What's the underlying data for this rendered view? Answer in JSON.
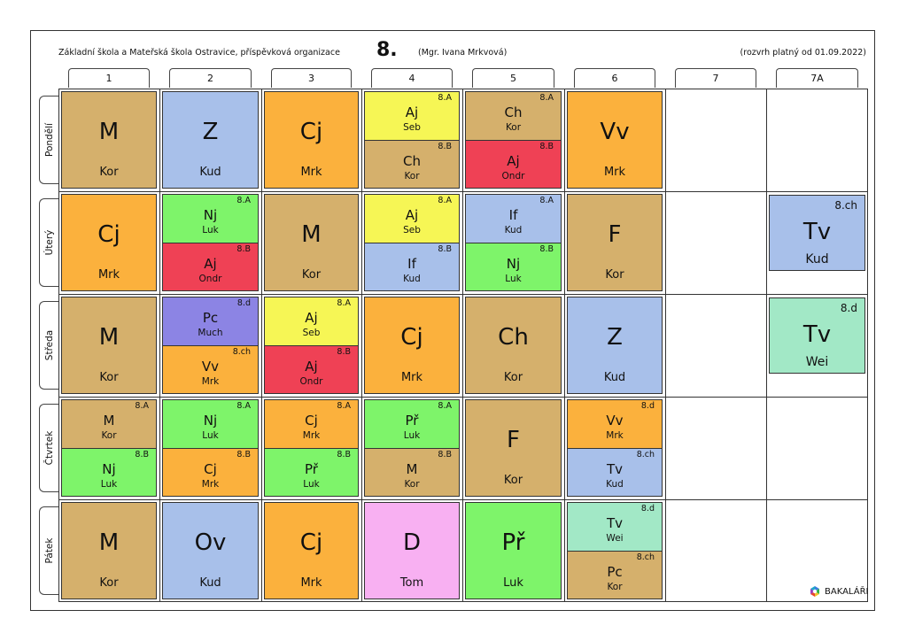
{
  "header": {
    "school": "Základní škola a Mateřská škola Ostravice, příspěvková organizace",
    "class_name": "8.",
    "teacher": "(Mgr. Ivana Mrkvová)",
    "valid_from": "(rozvrh platný od 01.09.2022)"
  },
  "periods": [
    "1",
    "2",
    "3",
    "4",
    "5",
    "6",
    "7",
    "7A"
  ],
  "days": [
    "Pondělí",
    "Úterý",
    "Středa",
    "Čtvrtek",
    "Pátek"
  ],
  "colors": {
    "tan": "#d5b06c",
    "blue": "#a8c0ea",
    "orange": "#fbb13d",
    "yellow": "#f6f655",
    "red": "#ef4155",
    "green": "#7ef46a",
    "purple": "#8c84e4",
    "pink": "#f8b0f2",
    "mint": "#a2e8c6"
  },
  "lessons": [
    {
      "day": 0,
      "period": 0,
      "type": "full",
      "subject": "M",
      "teacher": "Kor",
      "color": "tan"
    },
    {
      "day": 0,
      "period": 1,
      "type": "full",
      "subject": "Z",
      "teacher": "Kud",
      "color": "blue"
    },
    {
      "day": 0,
      "period": 2,
      "type": "full",
      "subject": "Cj",
      "teacher": "Mrk",
      "color": "orange"
    },
    {
      "day": 0,
      "period": 3,
      "type": "split",
      "top": {
        "group": "8.A",
        "subject": "Aj",
        "teacher": "Seb",
        "color": "yellow"
      },
      "bottom": {
        "group": "8.B",
        "subject": "Ch",
        "teacher": "Kor",
        "color": "tan"
      }
    },
    {
      "day": 0,
      "period": 4,
      "type": "split",
      "top": {
        "group": "8.A",
        "subject": "Ch",
        "teacher": "Kor",
        "color": "tan"
      },
      "bottom": {
        "group": "8.B",
        "subject": "Aj",
        "teacher": "Ondr",
        "color": "red"
      }
    },
    {
      "day": 0,
      "period": 5,
      "type": "full",
      "subject": "Vv",
      "teacher": "Mrk",
      "color": "orange"
    },
    {
      "day": 1,
      "period": 0,
      "type": "full",
      "subject": "Cj",
      "teacher": "Mrk",
      "color": "orange"
    },
    {
      "day": 1,
      "period": 1,
      "type": "split",
      "top": {
        "group": "8.A",
        "subject": "Nj",
        "teacher": "Luk",
        "color": "green"
      },
      "bottom": {
        "group": "8.B",
        "subject": "Aj",
        "teacher": "Ondr",
        "color": "red"
      }
    },
    {
      "day": 1,
      "period": 2,
      "type": "full",
      "subject": "M",
      "teacher": "Kor",
      "color": "tan"
    },
    {
      "day": 1,
      "period": 3,
      "type": "split",
      "top": {
        "group": "8.A",
        "subject": "Aj",
        "teacher": "Seb",
        "color": "yellow"
      },
      "bottom": {
        "group": "8.B",
        "subject": "If",
        "teacher": "Kud",
        "color": "blue"
      }
    },
    {
      "day": 1,
      "period": 4,
      "type": "split",
      "top": {
        "group": "8.A",
        "subject": "If",
        "teacher": "Kud",
        "color": "blue"
      },
      "bottom": {
        "group": "8.B",
        "subject": "Nj",
        "teacher": "Luk",
        "color": "green"
      }
    },
    {
      "day": 1,
      "period": 5,
      "type": "full",
      "subject": "F",
      "teacher": "Kor",
      "color": "tan"
    },
    {
      "day": 1,
      "period": 7,
      "type": "compact",
      "group": "8.ch",
      "subject": "Tv",
      "teacher": "Kud",
      "color": "blue"
    },
    {
      "day": 2,
      "period": 0,
      "type": "full",
      "subject": "M",
      "teacher": "Kor",
      "color": "tan"
    },
    {
      "day": 2,
      "period": 1,
      "type": "split",
      "top": {
        "group": "8.d",
        "subject": "Pc",
        "teacher": "Much",
        "color": "purple"
      },
      "bottom": {
        "group": "8.ch",
        "subject": "Vv",
        "teacher": "Mrk",
        "color": "orange"
      }
    },
    {
      "day": 2,
      "period": 2,
      "type": "split",
      "top": {
        "group": "8.A",
        "subject": "Aj",
        "teacher": "Seb",
        "color": "yellow"
      },
      "bottom": {
        "group": "8.B",
        "subject": "Aj",
        "teacher": "Ondr",
        "color": "red"
      }
    },
    {
      "day": 2,
      "period": 3,
      "type": "full",
      "subject": "Cj",
      "teacher": "Mrk",
      "color": "orange"
    },
    {
      "day": 2,
      "period": 4,
      "type": "full",
      "subject": "Ch",
      "teacher": "Kor",
      "color": "tan"
    },
    {
      "day": 2,
      "period": 5,
      "type": "full",
      "subject": "Z",
      "teacher": "Kud",
      "color": "blue"
    },
    {
      "day": 2,
      "period": 7,
      "type": "compact",
      "group": "8.d",
      "subject": "Tv",
      "teacher": "Wei",
      "color": "mint"
    },
    {
      "day": 3,
      "period": 0,
      "type": "split",
      "top": {
        "group": "8.A",
        "subject": "M",
        "teacher": "Kor",
        "color": "tan"
      },
      "bottom": {
        "group": "8.B",
        "subject": "Nj",
        "teacher": "Luk",
        "color": "green"
      }
    },
    {
      "day": 3,
      "period": 1,
      "type": "split",
      "top": {
        "group": "8.A",
        "subject": "Nj",
        "teacher": "Luk",
        "color": "green"
      },
      "bottom": {
        "group": "8.B",
        "subject": "Cj",
        "teacher": "Mrk",
        "color": "orange"
      }
    },
    {
      "day": 3,
      "period": 2,
      "type": "split",
      "top": {
        "group": "8.A",
        "subject": "Cj",
        "teacher": "Mrk",
        "color": "orange"
      },
      "bottom": {
        "group": "8.B",
        "subject": "Př",
        "teacher": "Luk",
        "color": "green"
      }
    },
    {
      "day": 3,
      "period": 3,
      "type": "split",
      "top": {
        "group": "8.A",
        "subject": "Př",
        "teacher": "Luk",
        "color": "green"
      },
      "bottom": {
        "group": "8.B",
        "subject": "M",
        "teacher": "Kor",
        "color": "tan"
      }
    },
    {
      "day": 3,
      "period": 4,
      "type": "full",
      "subject": "F",
      "teacher": "Kor",
      "color": "tan"
    },
    {
      "day": 3,
      "period": 5,
      "type": "split",
      "top": {
        "group": "8.d",
        "subject": "Vv",
        "teacher": "Mrk",
        "color": "orange"
      },
      "bottom": {
        "group": "8.ch",
        "subject": "Tv",
        "teacher": "Kud",
        "color": "blue"
      }
    },
    {
      "day": 4,
      "period": 0,
      "type": "full",
      "subject": "M",
      "teacher": "Kor",
      "color": "tan"
    },
    {
      "day": 4,
      "period": 1,
      "type": "full",
      "subject": "Ov",
      "teacher": "Kud",
      "color": "blue"
    },
    {
      "day": 4,
      "period": 2,
      "type": "full",
      "subject": "Cj",
      "teacher": "Mrk",
      "color": "orange"
    },
    {
      "day": 4,
      "period": 3,
      "type": "full",
      "subject": "D",
      "teacher": "Tom",
      "color": "pink"
    },
    {
      "day": 4,
      "period": 4,
      "type": "full",
      "subject": "Př",
      "teacher": "Luk",
      "color": "green"
    },
    {
      "day": 4,
      "period": 5,
      "type": "split",
      "top": {
        "group": "8.d",
        "subject": "Tv",
        "teacher": "Wei",
        "color": "mint"
      },
      "bottom": {
        "group": "8.ch",
        "subject": "Pc",
        "teacher": "Kor",
        "color": "tan"
      }
    }
  ],
  "footer": {
    "brand": "BAKALÁŘI"
  }
}
